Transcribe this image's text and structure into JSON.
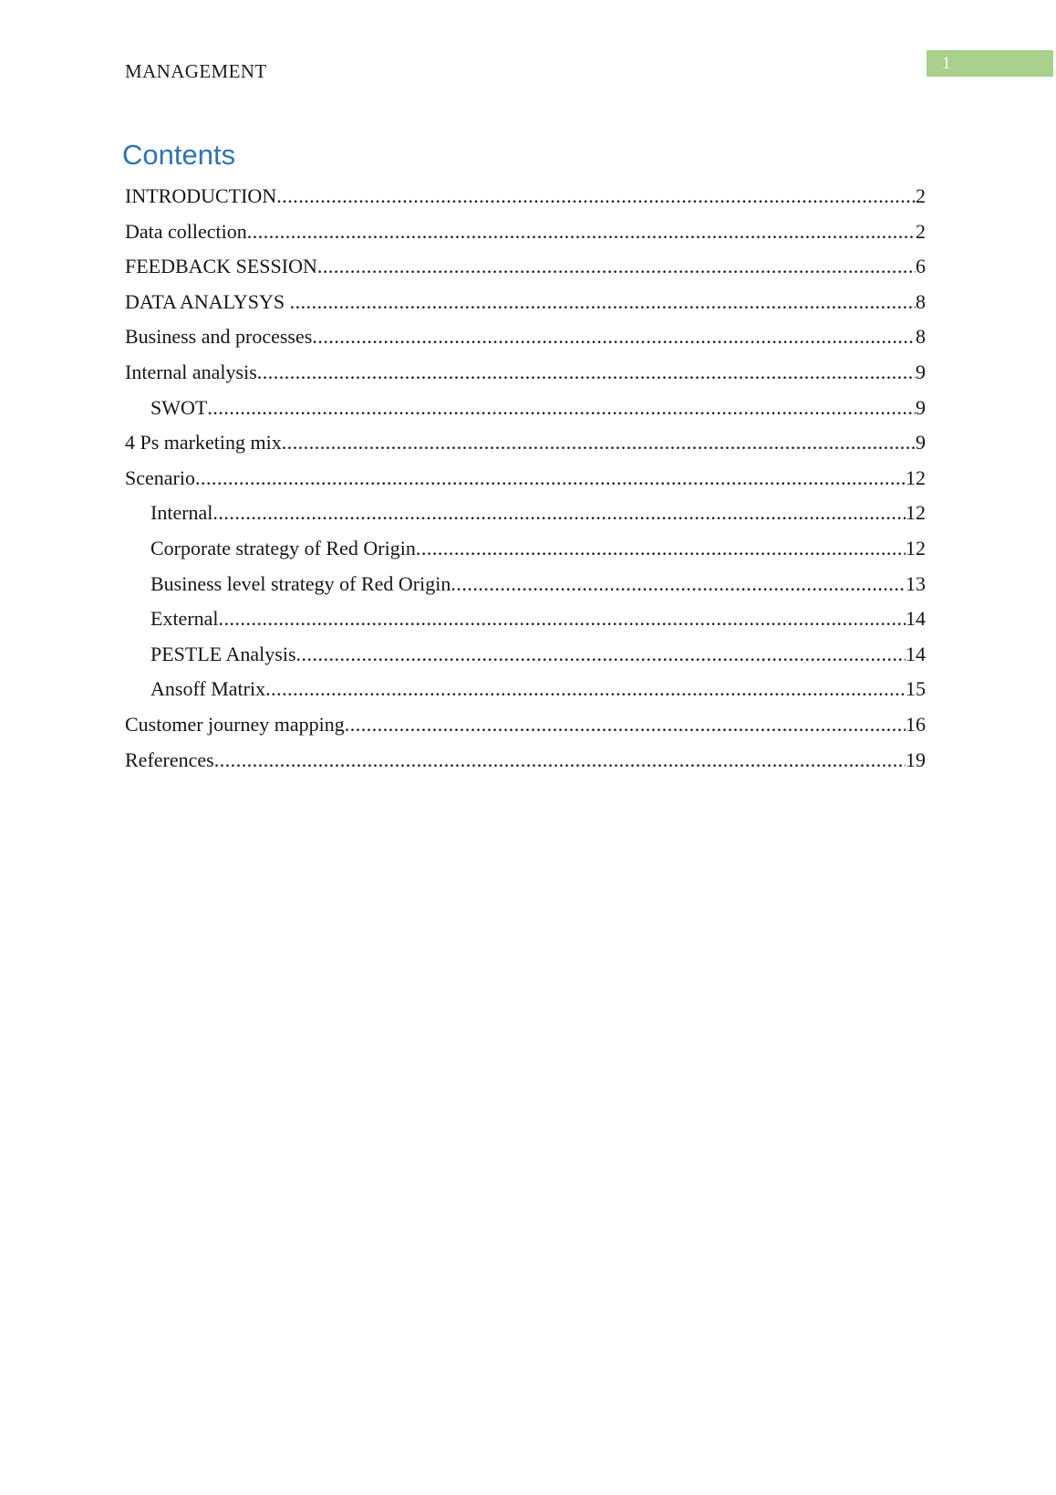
{
  "header": {
    "title": "MANAGEMENT",
    "page_badge": "1"
  },
  "contents": {
    "heading": "Contents",
    "entries": [
      {
        "title": "INTRODUCTION",
        "page": "2",
        "level": 0
      },
      {
        "title": "Data collection",
        "page": "2",
        "level": 0
      },
      {
        "title": "FEEDBACK SESSION",
        "page": "6",
        "level": 0
      },
      {
        "title": "DATA ANALYSYS ",
        "page": "8",
        "level": 0
      },
      {
        "title": "Business and processes",
        "page": "8",
        "level": 0
      },
      {
        "title": "Internal analysis",
        "page": "9",
        "level": 0
      },
      {
        "title": "SWOT",
        "page": "9",
        "level": 1
      },
      {
        "title": "4 Ps marketing mix",
        "page": "9",
        "level": 0
      },
      {
        "title": "Scenario",
        "page": "12",
        "level": 0
      },
      {
        "title": "Internal",
        "page": "12",
        "level": 1
      },
      {
        "title": "Corporate strategy of Red Origin",
        "page": "12",
        "level": 1
      },
      {
        "title": "Business level strategy of Red Origin",
        "page": "13",
        "level": 1
      },
      {
        "title": "External",
        "page": "14",
        "level": 1
      },
      {
        "title": "PESTLE Analysis",
        "page": "14",
        "level": 1
      },
      {
        "title": "Ansoff Matrix",
        "page": "15",
        "level": 1
      },
      {
        "title": "Customer journey mapping",
        "page": "16",
        "level": 0
      },
      {
        "title": "References",
        "page": "19",
        "level": 0
      }
    ]
  },
  "colors": {
    "heading_blue": "#2e74b5",
    "badge_green": "#a9d08d",
    "badge_text": "#ffffff",
    "body_text": "#161616"
  }
}
